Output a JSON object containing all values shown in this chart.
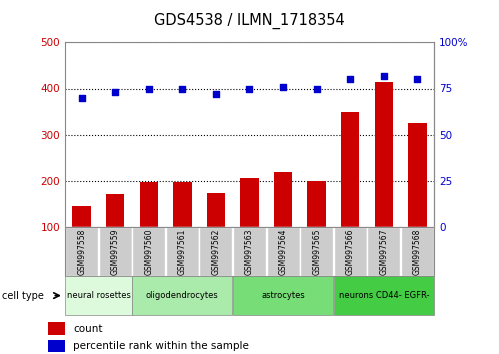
{
  "title": "GDS4538 / ILMN_1718354",
  "samples": [
    "GSM997558",
    "GSM997559",
    "GSM997560",
    "GSM997561",
    "GSM997562",
    "GSM997563",
    "GSM997564",
    "GSM997565",
    "GSM997566",
    "GSM997567",
    "GSM997568"
  ],
  "bar_values": [
    145,
    170,
    197,
    197,
    172,
    205,
    218,
    200,
    350,
    415,
    325
  ],
  "scatter_values": [
    70,
    73,
    75,
    75,
    72,
    75,
    76,
    75,
    80,
    82,
    80
  ],
  "bar_color": "#cc0000",
  "scatter_color": "#0000cc",
  "ylim_left": [
    100,
    500
  ],
  "ylim_right": [
    0,
    100
  ],
  "yticks_left": [
    100,
    200,
    300,
    400,
    500
  ],
  "yticks_right": [
    0,
    25,
    50,
    75,
    100
  ],
  "ytick_labels_right": [
    "0",
    "25",
    "50",
    "75",
    "100%"
  ],
  "cell_types": [
    {
      "label": "neural rosettes",
      "start": 0,
      "end": 1,
      "color": "#ddfadd"
    },
    {
      "label": "oligodendrocytes",
      "start": 2,
      "end": 4,
      "color": "#aaeaaa"
    },
    {
      "label": "astrocytes",
      "start": 5,
      "end": 7,
      "color": "#77dd77"
    },
    {
      "label": "neurons CD44- EGFR-",
      "start": 8,
      "end": 10,
      "color": "#44cc44"
    }
  ],
  "legend_count_label": "count",
  "legend_pct_label": "percentile rank within the sample",
  "tick_label_color_left": "#cc0000",
  "tick_label_color_right": "#0000cc",
  "grid_color": "black",
  "cell_type_label": "cell type",
  "bg_plot": "#ffffff",
  "bg_xtick": "#cccccc",
  "fig_width": 4.99,
  "fig_height": 3.54,
  "dpi": 100
}
